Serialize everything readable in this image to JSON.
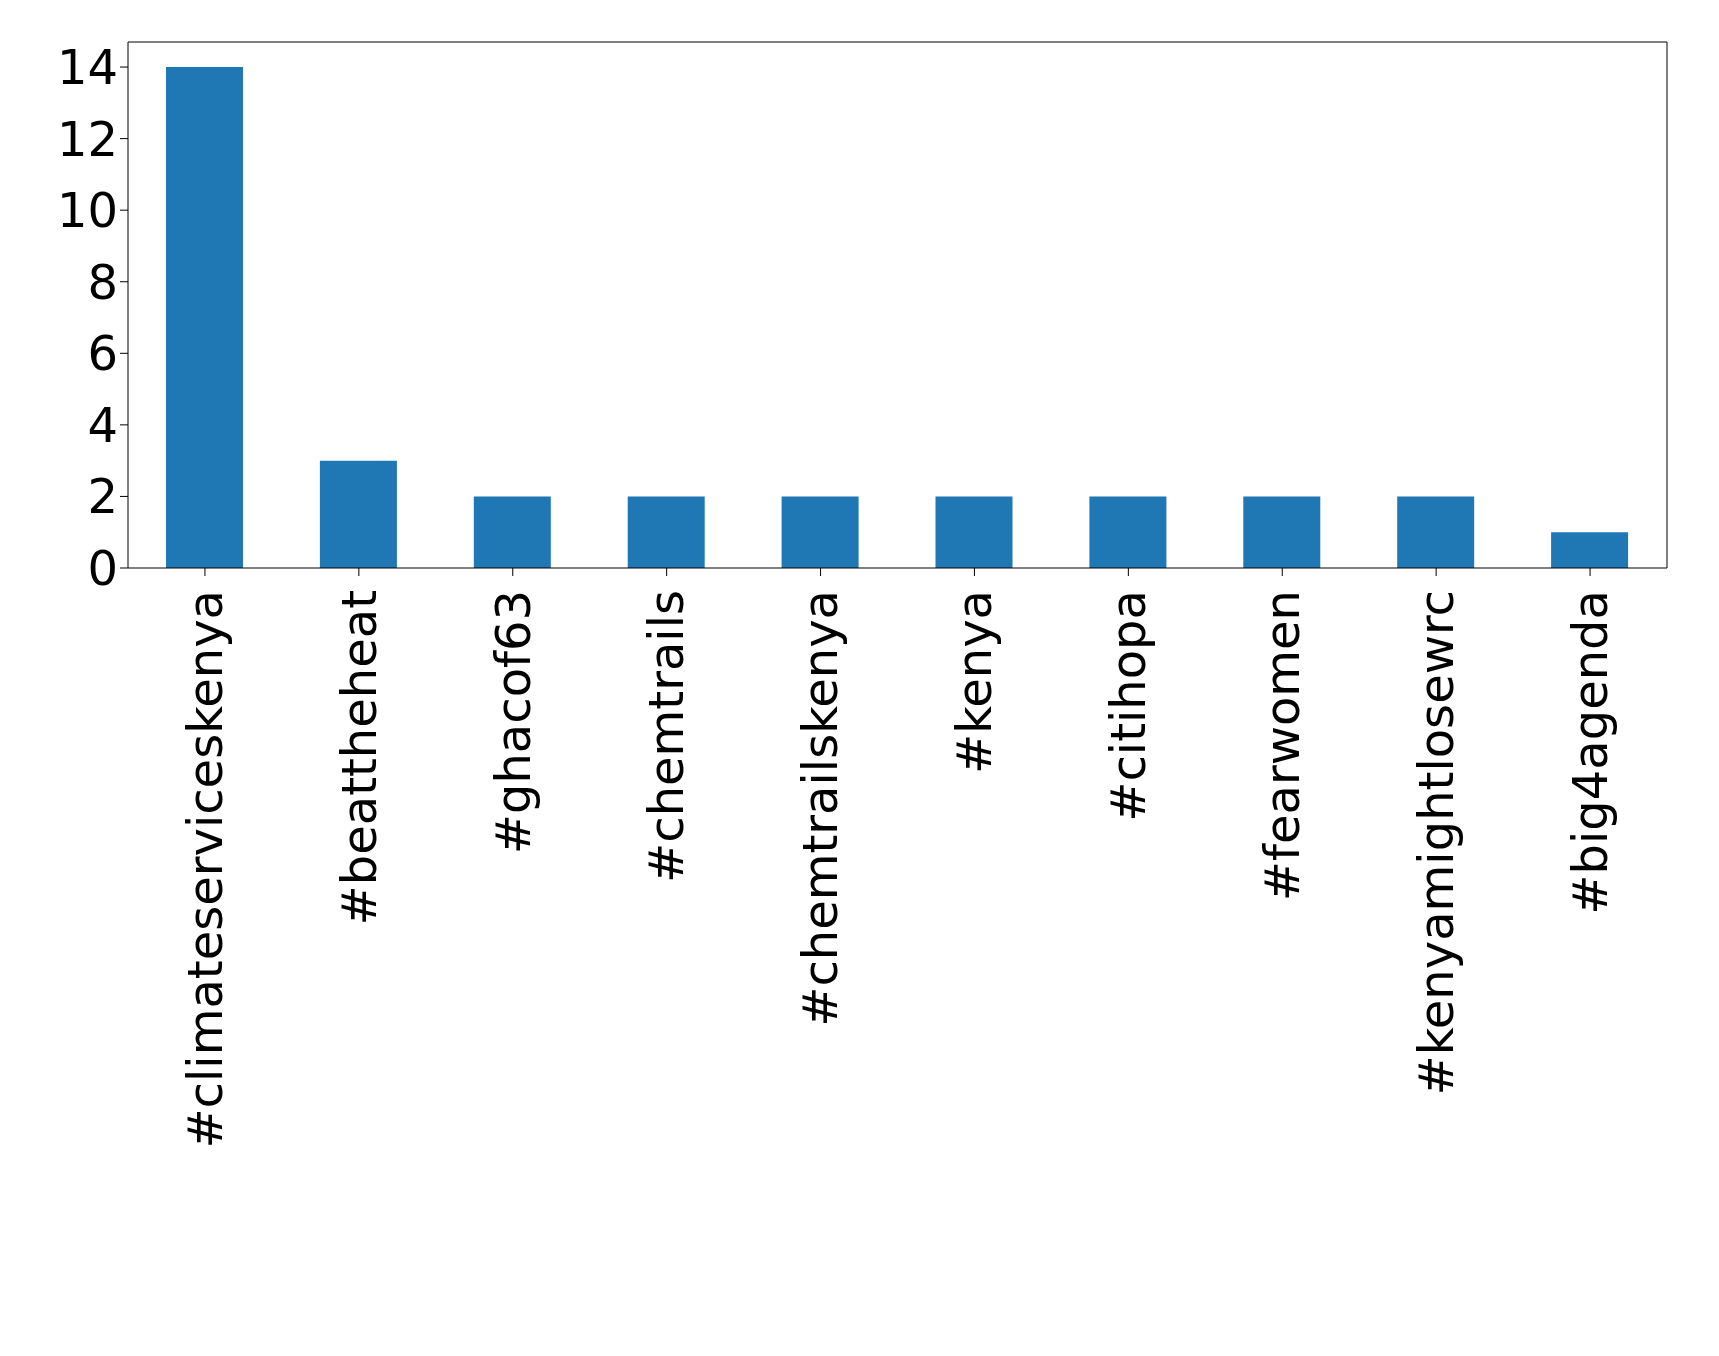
{
  "chart_data": {
    "type": "bar",
    "categories": [
      "#climateserviceskenya",
      "#beattheheat",
      "#ghacof63",
      "#chemtrails",
      "#chemtrailskenya",
      "#kenya",
      "#citihopa",
      "#fearwomen",
      "#kenyamightlosewrc",
      "#big4agenda"
    ],
    "values": [
      14,
      3,
      2,
      2,
      2,
      2,
      2,
      2,
      2,
      1
    ],
    "color": "#1f77b4",
    "ylim": [
      0,
      14.7
    ],
    "yticks": [
      0,
      2,
      4,
      6,
      8,
      10,
      12,
      14
    ],
    "grid": false,
    "legend": false
  }
}
